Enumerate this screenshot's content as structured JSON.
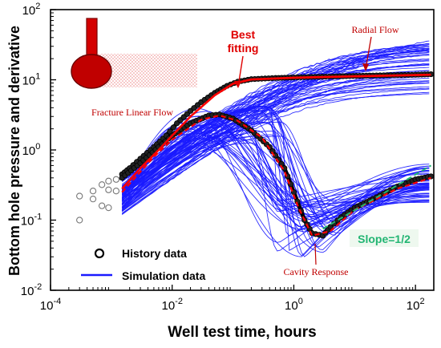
{
  "chart_data": {
    "type": "line",
    "xlabel": "Well test time, hours",
    "ylabel": "Bottom hole pressure and derivative",
    "xscale": "log",
    "yscale": "log",
    "xlim": [
      0.0001,
      200
    ],
    "ylim": [
      0.01,
      100
    ],
    "x_ticks": [
      {
        "value": 0.0001,
        "base": "10",
        "exp": "-4"
      },
      {
        "value": 0.01,
        "base": "10",
        "exp": "-2"
      },
      {
        "value": 1,
        "base": "10",
        "exp": "0"
      },
      {
        "value": 100,
        "base": "10",
        "exp": "2"
      }
    ],
    "y_ticks": [
      {
        "value": 0.01,
        "base": "10",
        "exp": "-2"
      },
      {
        "value": 0.1,
        "base": "10",
        "exp": "-1"
      },
      {
        "value": 1,
        "base": "10",
        "exp": "0"
      },
      {
        "value": 10,
        "base": "10",
        "exp": "1"
      },
      {
        "value": 100,
        "base": "10",
        "exp": "2"
      }
    ],
    "legend": {
      "position": "bottom-left",
      "history_label": "History data",
      "simulation_label": "Simulation data"
    },
    "colors": {
      "simulation": "#1a1aff",
      "best_fit": "#ff0000",
      "history": "#000000",
      "slope": "#22b573",
      "annotation": "#c00000"
    },
    "annotations": {
      "best_fitting": [
        "Best",
        "fitting"
      ],
      "radial_flow": "Radial Flow",
      "fracture_linear_flow": "Fracture Linear Flow",
      "cavity_response": "Cavity Response",
      "slope": "Slope=1/2"
    },
    "history_open_points": [
      {
        "x": 0.0003,
        "y": 0.1
      },
      {
        "x": 0.0003,
        "y": 0.22
      },
      {
        "x": 0.0005,
        "y": 0.2
      },
      {
        "x": 0.0005,
        "y": 0.26
      },
      {
        "x": 0.0007,
        "y": 0.32
      },
      {
        "x": 0.0007,
        "y": 0.16
      },
      {
        "x": 0.0009,
        "y": 0.15
      },
      {
        "x": 0.0009,
        "y": 0.27
      },
      {
        "x": 0.0009,
        "y": 0.36
      },
      {
        "x": 0.0012,
        "y": 0.38
      },
      {
        "x": 0.0012,
        "y": 0.26
      }
    ],
    "history_pressure": [
      {
        "x": 0.0015,
        "y": 0.45
      },
      {
        "x": 0.002,
        "y": 0.55
      },
      {
        "x": 0.003,
        "y": 0.75
      },
      {
        "x": 0.005,
        "y": 1.1
      },
      {
        "x": 0.008,
        "y": 1.6
      },
      {
        "x": 0.012,
        "y": 2.4
      },
      {
        "x": 0.02,
        "y": 3.6
      },
      {
        "x": 0.03,
        "y": 4.8
      },
      {
        "x": 0.05,
        "y": 6.5
      },
      {
        "x": 0.08,
        "y": 8.2
      },
      {
        "x": 0.12,
        "y": 9.4
      },
      {
        "x": 0.2,
        "y": 10.2
      },
      {
        "x": 0.5,
        "y": 10.6
      },
      {
        "x": 1,
        "y": 10.8
      },
      {
        "x": 5,
        "y": 11.2
      },
      {
        "x": 20,
        "y": 11.5
      },
      {
        "x": 100,
        "y": 11.8
      },
      {
        "x": 180,
        "y": 12
      }
    ],
    "history_derivative": [
      {
        "x": 0.0015,
        "y": 0.4
      },
      {
        "x": 0.003,
        "y": 0.65
      },
      {
        "x": 0.006,
        "y": 1.1
      },
      {
        "x": 0.01,
        "y": 1.6
      },
      {
        "x": 0.02,
        "y": 2.4
      },
      {
        "x": 0.04,
        "y": 3.1
      },
      {
        "x": 0.06,
        "y": 3.2
      },
      {
        "x": 0.1,
        "y": 2.8
      },
      {
        "x": 0.2,
        "y": 1.9
      },
      {
        "x": 0.4,
        "y": 1.1
      },
      {
        "x": 0.7,
        "y": 0.55
      },
      {
        "x": 1,
        "y": 0.25
      },
      {
        "x": 1.5,
        "y": 0.1
      },
      {
        "x": 2,
        "y": 0.065
      },
      {
        "x": 3,
        "y": 0.06
      },
      {
        "x": 4,
        "y": 0.08
      },
      {
        "x": 6,
        "y": 0.11
      },
      {
        "x": 10,
        "y": 0.15
      },
      {
        "x": 20,
        "y": 0.2
      },
      {
        "x": 50,
        "y": 0.3
      },
      {
        "x": 100,
        "y": 0.38
      },
      {
        "x": 180,
        "y": 0.42
      }
    ],
    "best_fit_pressure": [
      {
        "x": 0.0015,
        "y": 0.28
      },
      {
        "x": 0.003,
        "y": 0.55
      },
      {
        "x": 0.006,
        "y": 1.0
      },
      {
        "x": 0.01,
        "y": 1.6
      },
      {
        "x": 0.02,
        "y": 3.0
      },
      {
        "x": 0.05,
        "y": 6.0
      },
      {
        "x": 0.1,
        "y": 8.8
      },
      {
        "x": 0.2,
        "y": 10.1
      },
      {
        "x": 1,
        "y": 10.7
      },
      {
        "x": 10,
        "y": 11.2
      },
      {
        "x": 180,
        "y": 11.8
      }
    ],
    "best_fit_derivative": [
      {
        "x": 0.0015,
        "y": 0.25
      },
      {
        "x": 0.005,
        "y": 0.8
      },
      {
        "x": 0.01,
        "y": 1.4
      },
      {
        "x": 0.03,
        "y": 2.7
      },
      {
        "x": 0.06,
        "y": 3.1
      },
      {
        "x": 0.12,
        "y": 2.6
      },
      {
        "x": 0.3,
        "y": 1.5
      },
      {
        "x": 0.7,
        "y": 0.5
      },
      {
        "x": 1.2,
        "y": 0.15
      },
      {
        "x": 2,
        "y": 0.06
      },
      {
        "x": 4,
        "y": 0.07
      },
      {
        "x": 10,
        "y": 0.14
      },
      {
        "x": 50,
        "y": 0.28
      },
      {
        "x": 180,
        "y": 0.4
      }
    ],
    "slope_line": [
      {
        "x": 3,
        "y": 0.075
      },
      {
        "x": 180,
        "y": 0.6
      }
    ]
  }
}
